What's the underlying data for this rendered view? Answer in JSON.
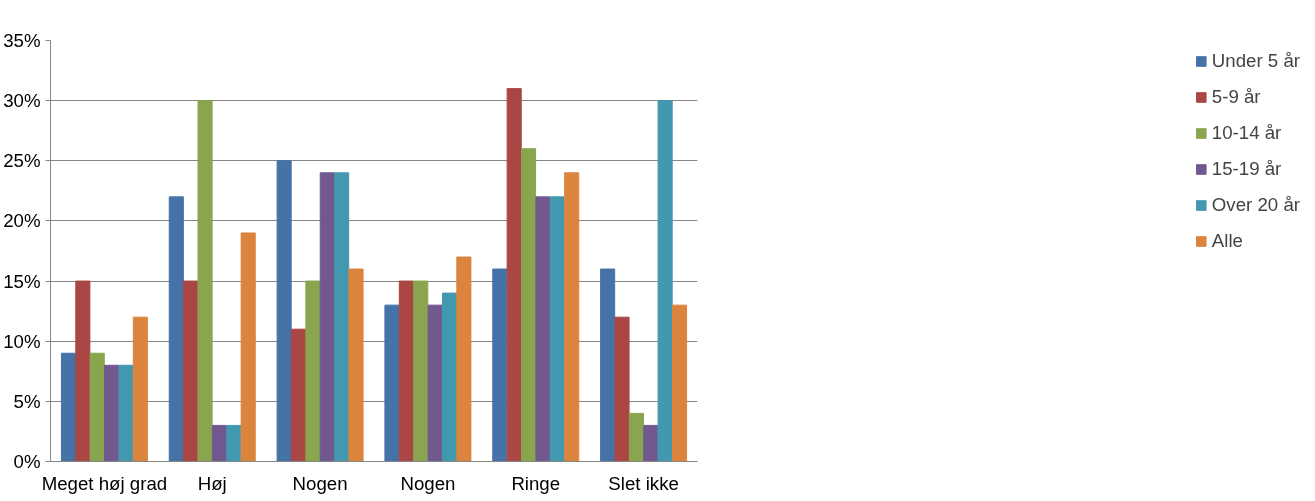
{
  "chart_data": {
    "type": "bar",
    "categories": [
      "Meget høj grad",
      "Høj",
      "Nogen",
      "Nogen",
      "Ringe",
      "Slet ikke"
    ],
    "series": [
      {
        "name": "Under 5 år",
        "color": "#4572a7",
        "values": [
          9,
          22,
          25,
          13,
          16,
          16
        ]
      },
      {
        "name": "5-9 år",
        "color": "#aa4643",
        "values": [
          15,
          15,
          11,
          15,
          31,
          12
        ]
      },
      {
        "name": "10-14 år",
        "color": "#89a54e",
        "values": [
          9,
          30,
          15,
          15,
          26,
          4
        ]
      },
      {
        "name": "15-19 år",
        "color": "#71588f",
        "values": [
          8,
          3,
          24,
          13,
          22,
          3
        ]
      },
      {
        "name": "Over 20 år",
        "color": "#4198af",
        "values": [
          8,
          3,
          24,
          14,
          22,
          30
        ]
      },
      {
        "name": "Alle",
        "color": "#db843d",
        "values": [
          12,
          19,
          16,
          17,
          24,
          13
        ]
      }
    ],
    "ylim": [
      0,
      35
    ],
    "yticks": [
      {
        "value": 0,
        "label": "0%"
      },
      {
        "value": 5,
        "label": "5%"
      },
      {
        "value": 10,
        "label": "10%"
      },
      {
        "value": 15,
        "label": "15%"
      },
      {
        "value": 20,
        "label": "20%"
      },
      {
        "value": 25,
        "label": "25%"
      },
      {
        "value": 30,
        "label": "30%"
      },
      {
        "value": 35,
        "label": "35%"
      }
    ],
    "grid": "y",
    "legend": "right"
  }
}
